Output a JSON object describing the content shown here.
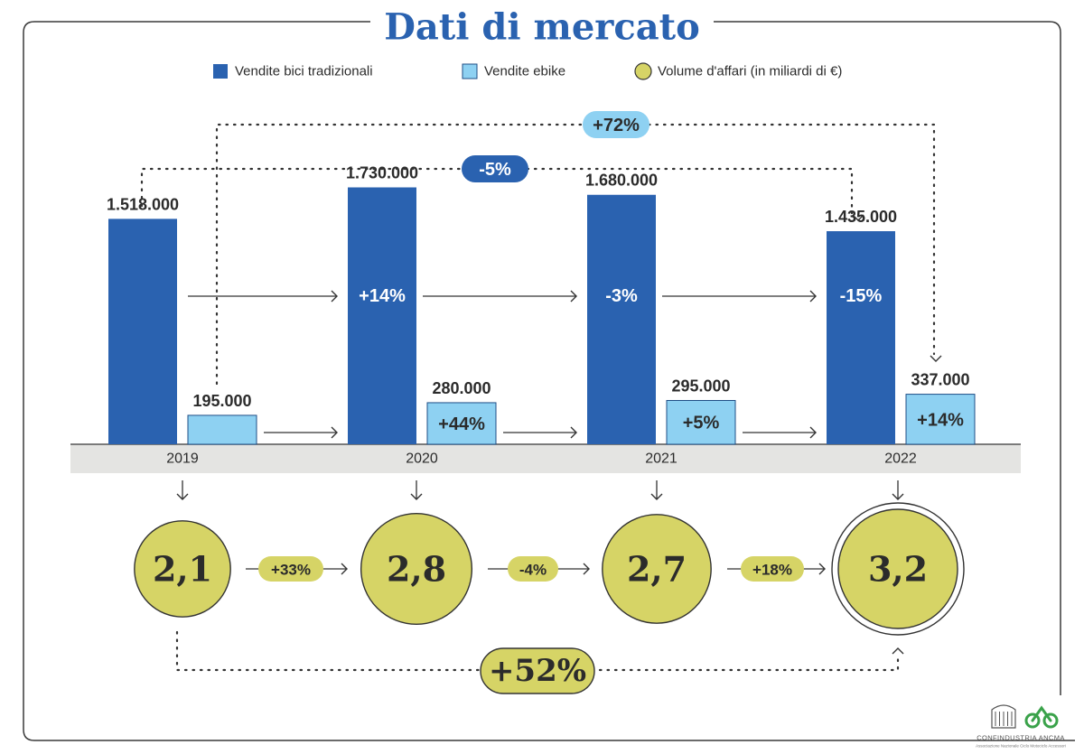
{
  "page": {
    "title": "Dati di mercato"
  },
  "colors": {
    "traditional": "#2a62b0",
    "ebike": "#8ed1f2",
    "volume": "#d6d466",
    "volume_border": "#333333",
    "text": "#2b2b2b",
    "band": "#e4e4e2",
    "frame": "#3a3a3a",
    "title": "#2a62b0"
  },
  "legend": {
    "traditional": "Vendite bici tradizionali",
    "ebike": "Vendite ebike",
    "volume": "Volume d'affari (in miliardi di €)"
  },
  "chart_data": {
    "type": "bar",
    "title": "Dati di mercato",
    "categories": [
      "2019",
      "2020",
      "2021",
      "2022"
    ],
    "series": [
      {
        "name": "Vendite bici tradizionali",
        "values": [
          1518000,
          1730000,
          1680000,
          1435000
        ],
        "value_labels": [
          "1.518.000",
          "1.730.000",
          "1.680.000",
          "1.435.000"
        ],
        "change_labels": [
          "",
          "+14%",
          "-3%",
          "-15%"
        ]
      },
      {
        "name": "Vendite ebike",
        "values": [
          195000,
          280000,
          295000,
          337000
        ],
        "value_labels": [
          "195.000",
          "280.000",
          "295.000",
          "337.000"
        ],
        "change_labels": [
          "",
          "+44%",
          "+5%",
          "+14%"
        ]
      },
      {
        "name": "Volume d'affari (in miliardi di €)",
        "values": [
          2.1,
          2.8,
          2.7,
          3.2
        ],
        "value_labels": [
          "2,1",
          "2,8",
          "2,7",
          "3,2"
        ],
        "change_labels": [
          "+33%",
          "-4%",
          "+18%"
        ]
      }
    ],
    "overall_changes": {
      "traditional_2019_2022": "-5%",
      "ebike_2019_2022": "+72%",
      "volume_2019_2022": "+52%"
    },
    "ylim": [
      0,
      1800000
    ],
    "grid": false,
    "legend_position": "top"
  },
  "logo": {
    "name": "CONFINDUSTRIA ANCMA",
    "subtitle": "Associazione Nazionale Ciclo Motociclo Accessori"
  }
}
